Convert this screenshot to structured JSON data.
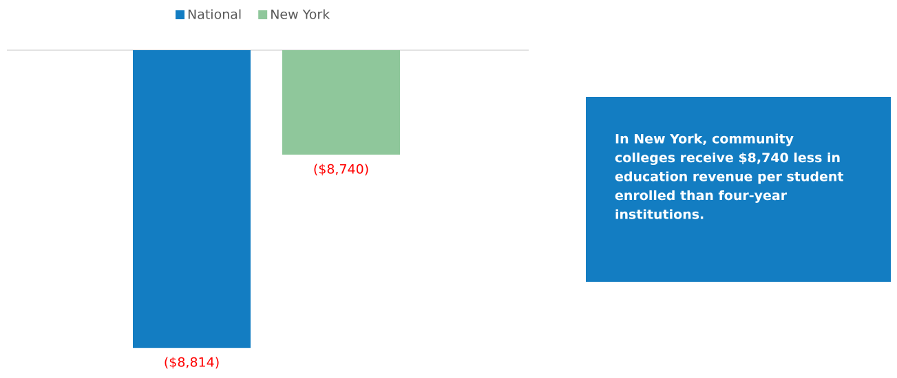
{
  "chart_data": {
    "type": "bar",
    "categories": [
      null
    ],
    "series": [
      {
        "name": "National",
        "color": "#137dc2",
        "values": [
          -8814
        ],
        "value_labels": [
          "($8,814)"
        ]
      },
      {
        "name": "New York",
        "color": "#8fc79b",
        "values": [
          -8740
        ],
        "value_labels": [
          "($8,740)"
        ]
      }
    ],
    "ylim": [
      -8820,
      -8700
    ],
    "label_color": "#ff0000",
    "annotation": [
      "In New York, community",
      "colleges receive $8,740 less in",
      "education revenue per student",
      "enrolled than four-year",
      "institutions."
    ]
  }
}
